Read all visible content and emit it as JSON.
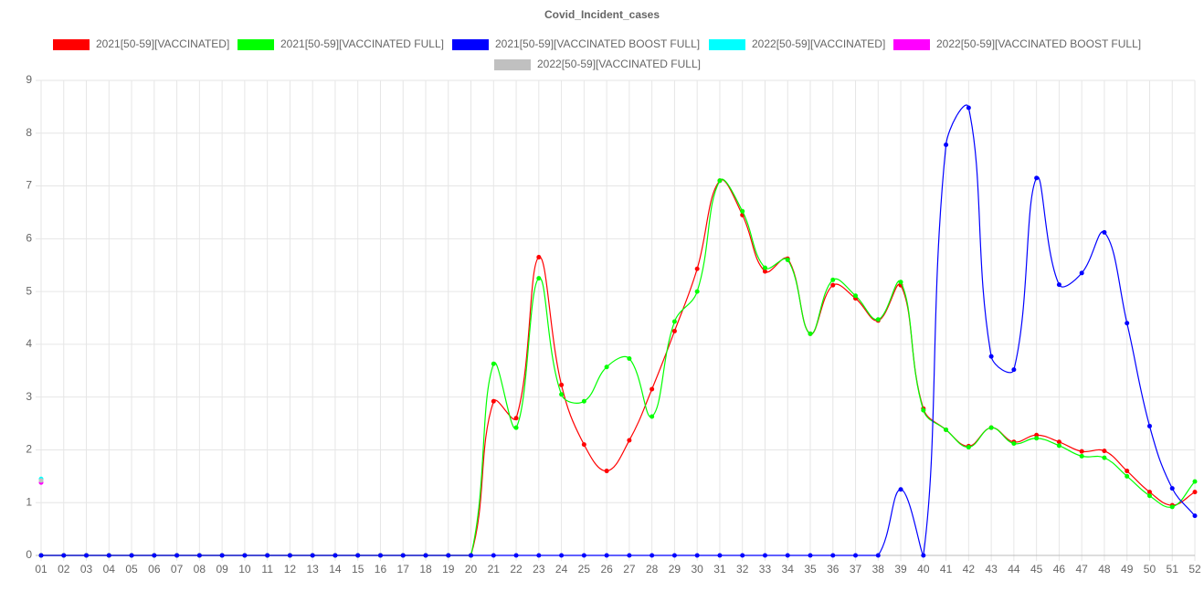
{
  "chart_data": {
    "type": "line",
    "title": "Covid_Incident_cases",
    "categories": [
      "01",
      "02",
      "03",
      "04",
      "05",
      "06",
      "07",
      "08",
      "09",
      "10",
      "11",
      "12",
      "13",
      "14",
      "15",
      "16",
      "17",
      "18",
      "19",
      "20",
      "21",
      "22",
      "23",
      "24",
      "25",
      "26",
      "27",
      "28",
      "29",
      "30",
      "31",
      "32",
      "33",
      "34",
      "35",
      "36",
      "37",
      "38",
      "39",
      "40",
      "41",
      "42",
      "43",
      "44",
      "45",
      "46",
      "47",
      "48",
      "49",
      "50",
      "51",
      "52"
    ],
    "series": [
      {
        "name": "2021[50-59][VACCINATED]",
        "color": "#ff0000",
        "values": [
          0,
          0,
          0,
          0,
          0,
          0,
          0,
          0,
          0,
          0,
          0,
          0,
          0,
          0,
          0,
          0,
          0,
          0,
          0,
          0,
          2.92,
          2.6,
          5.65,
          3.23,
          2.1,
          1.6,
          2.18,
          3.15,
          4.25,
          5.43,
          7.1,
          6.45,
          5.38,
          5.62,
          4.2,
          5.12,
          4.87,
          4.45,
          5.12,
          2.78,
          2.38,
          2.07,
          2.42,
          2.15,
          2.28,
          2.15,
          1.97,
          1.98,
          1.6,
          1.2,
          0.95,
          1.2
        ]
      },
      {
        "name": "2021[50-59][VACCINATED FULL]",
        "color": "#00ff00",
        "values": [
          0,
          0,
          0,
          0,
          0,
          0,
          0,
          0,
          0,
          0,
          0,
          0,
          0,
          0,
          0,
          0,
          0,
          0,
          0,
          0,
          3.63,
          2.42,
          5.25,
          3.05,
          2.92,
          3.57,
          3.73,
          2.63,
          4.43,
          5.0,
          7.1,
          6.52,
          5.45,
          5.6,
          4.2,
          5.22,
          4.92,
          4.47,
          5.18,
          2.75,
          2.38,
          2.05,
          2.42,
          2.12,
          2.22,
          2.08,
          1.88,
          1.85,
          1.5,
          1.13,
          0.92,
          1.4
        ]
      },
      {
        "name": "2021[50-59][VACCINATED BOOST FULL]",
        "color": "#0000ff",
        "values": [
          0,
          0,
          0,
          0,
          0,
          0,
          0,
          0,
          0,
          0,
          0,
          0,
          0,
          0,
          0,
          0,
          0,
          0,
          0,
          0,
          0,
          0,
          0,
          0,
          0,
          0,
          0,
          0,
          0,
          0,
          0,
          0,
          0,
          0,
          0,
          0,
          0,
          0,
          1.25,
          0,
          7.78,
          8.48,
          3.77,
          3.52,
          7.15,
          5.13,
          5.35,
          6.12,
          4.4,
          2.45,
          1.27,
          0.75
        ]
      },
      {
        "name": "2022[50-59][VACCINATED]",
        "color": "#00ffff",
        "values": [
          1.45,
          null,
          null,
          null,
          null,
          null,
          null,
          null,
          null,
          null,
          null,
          null,
          null,
          null,
          null,
          null,
          null,
          null,
          null,
          null,
          null,
          null,
          null,
          null,
          null,
          null,
          null,
          null,
          null,
          null,
          null,
          null,
          null,
          null,
          null,
          null,
          null,
          null,
          null,
          null,
          null,
          null,
          null,
          null,
          null,
          null,
          null,
          null,
          null,
          null,
          null,
          null
        ]
      },
      {
        "name": "2022[50-59][VACCINATED BOOST FULL]",
        "color": "#ff00ff",
        "values": [
          1.38,
          null,
          null,
          null,
          null,
          null,
          null,
          null,
          null,
          null,
          null,
          null,
          null,
          null,
          null,
          null,
          null,
          null,
          null,
          null,
          null,
          null,
          null,
          null,
          null,
          null,
          null,
          null,
          null,
          null,
          null,
          null,
          null,
          null,
          null,
          null,
          null,
          null,
          null,
          null,
          null,
          null,
          null,
          null,
          null,
          null,
          null,
          null,
          null,
          null,
          null,
          null
        ]
      },
      {
        "name": "2022[50-59][VACCINATED FULL]",
        "color": "#c0c0c0",
        "values": [
          1.42,
          null,
          null,
          null,
          null,
          null,
          null,
          null,
          null,
          null,
          null,
          null,
          null,
          null,
          null,
          null,
          null,
          null,
          null,
          null,
          null,
          null,
          null,
          null,
          null,
          null,
          null,
          null,
          null,
          null,
          null,
          null,
          null,
          null,
          null,
          null,
          null,
          null,
          null,
          null,
          null,
          null,
          null,
          null,
          null,
          null,
          null,
          null,
          null,
          null,
          null,
          null
        ]
      }
    ],
    "ylim": [
      0,
      9
    ],
    "yticks": [
      0,
      1,
      2,
      3,
      4,
      5,
      6,
      7,
      8,
      9
    ],
    "grid": true
  }
}
